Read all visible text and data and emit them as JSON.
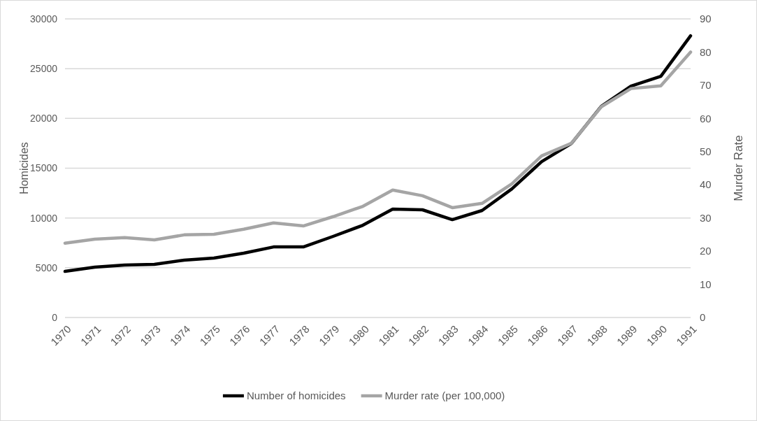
{
  "chart_data": {
    "type": "line",
    "ylabel": "Homicides",
    "y2label": "Murder Rate",
    "categories": [
      "1970",
      "1971",
      "1972",
      "1973",
      "1974",
      "1975",
      "1976",
      "1977",
      "1978",
      "1979",
      "1980",
      "1981",
      "1982",
      "1983",
      "1984",
      "1985",
      "1986",
      "1987",
      "1988",
      "1989",
      "1990",
      "1991"
    ],
    "series": [
      {
        "name": "Number of homicides",
        "color": "#000000",
        "values": [
          4630,
          5060,
          5270,
          5340,
          5760,
          5970,
          6460,
          7090,
          7090,
          8150,
          9270,
          10890,
          10820,
          9830,
          10750,
          12920,
          15660,
          17490,
          21210,
          23250,
          24230,
          28300
        ]
      },
      {
        "name": "Murder rate (per 100,000)",
        "color": "#a5a5a5",
        "axis": "y2",
        "values": [
          22.4,
          23.6,
          24.1,
          23.4,
          24.9,
          25.1,
          26.6,
          28.5,
          27.6,
          30.4,
          33.5,
          38.4,
          36.7,
          33.1,
          34.4,
          40.3,
          48.7,
          52.5,
          63.5,
          69.0,
          69.8,
          80.0
        ]
      }
    ],
    "ylim": [
      0,
      30000
    ],
    "yticks": [
      0,
      5000,
      10000,
      15000,
      20000,
      25000,
      30000
    ],
    "y2lim": [
      0,
      90
    ],
    "y2ticks": [
      0,
      10,
      20,
      30,
      40,
      50,
      60,
      70,
      80,
      90
    ],
    "grid": "y",
    "legend": "bottom",
    "marker": "none",
    "line_style": "solid"
  }
}
